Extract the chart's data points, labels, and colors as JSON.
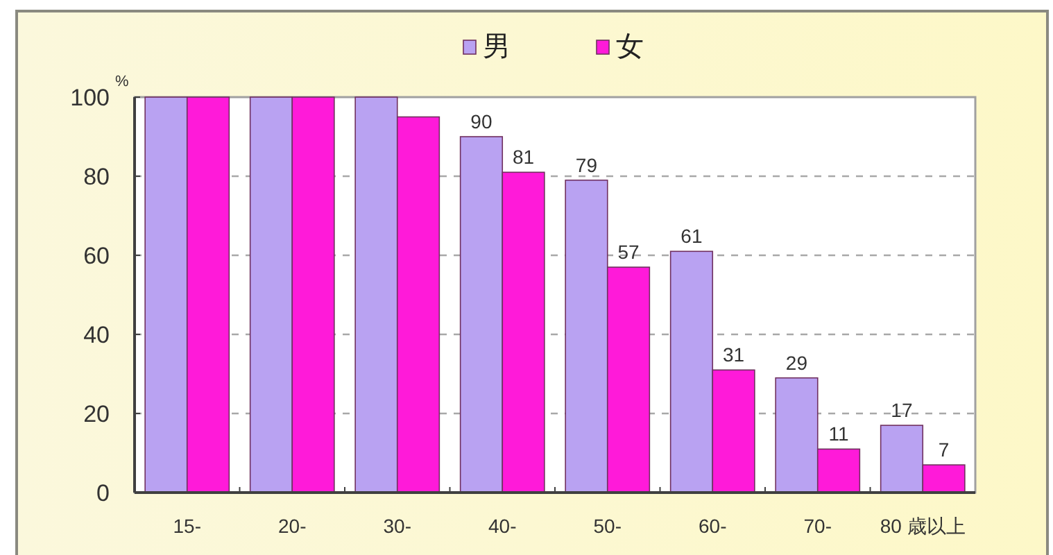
{
  "chart_data": {
    "type": "bar",
    "ylabel": "%",
    "categories": [
      "15-",
      "20-",
      "30-",
      "40-",
      "50-",
      "60-",
      "70-",
      "80 歳以上"
    ],
    "series": [
      {
        "name": "男",
        "color": "#b9a2f2",
        "values": [
          100,
          100,
          100,
          90,
          79,
          61,
          29,
          17
        ],
        "value_labels": [
          null,
          null,
          null,
          "90",
          "79",
          "61",
          "29",
          "17"
        ]
      },
      {
        "name": "女",
        "color": "#ff1ad9",
        "values": [
          100,
          100,
          95,
          81,
          57,
          31,
          11,
          7
        ],
        "value_labels": [
          null,
          null,
          null,
          "81",
          "57",
          "31",
          "11",
          "7"
        ]
      }
    ],
    "ylim": [
      0,
      100
    ],
    "yticks": [
      0,
      20,
      40,
      60,
      80,
      100
    ],
    "grid": "y",
    "legend": "top"
  }
}
